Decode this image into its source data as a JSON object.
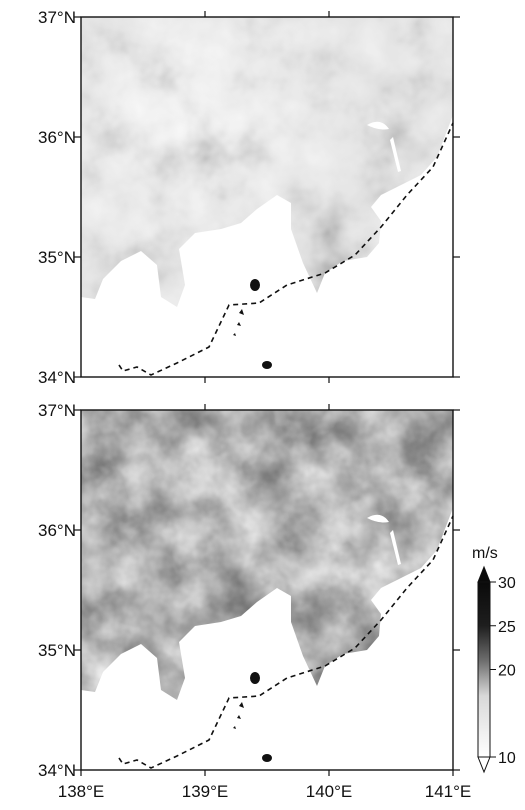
{
  "maps": [
    {
      "lat_labels": [
        "37°N",
        "36°N",
        "35°N",
        "34°N"
      ],
      "lon_labels": []
    },
    {
      "lat_labels": [
        "37°N",
        "36°N",
        "35°N",
        "34°N"
      ],
      "lon_labels": [
        "138°E",
        "139°E",
        "140°E",
        "141°E"
      ]
    }
  ],
  "colorbar": {
    "unit": "m/s",
    "ticks": [
      "30",
      "25",
      "20",
      "10"
    ],
    "tick_values": [
      30,
      25,
      20,
      10
    ],
    "range": [
      10,
      30
    ]
  },
  "extent": {
    "lon": [
      138,
      141
    ],
    "lat": [
      34,
      37
    ]
  },
  "colors": {
    "land_low": "#ffffff",
    "land_high": "#111111",
    "sea": "#ffffff",
    "boundary": "#111111"
  }
}
